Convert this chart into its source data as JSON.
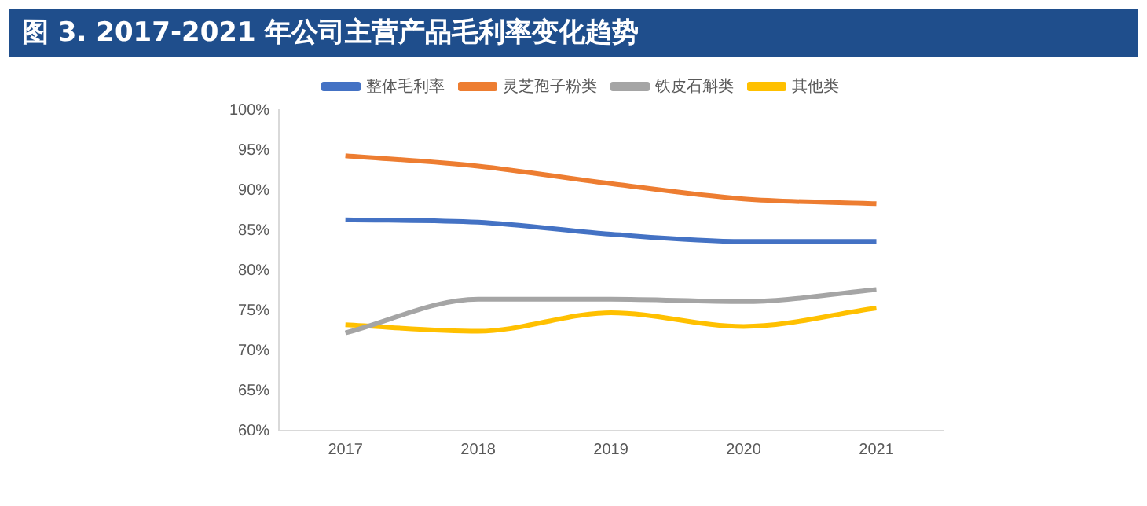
{
  "chart_data": {
    "type": "line",
    "title": "图 3. 2017-2021 年公司主营产品毛利率变化趋势",
    "categories": [
      "2017",
      "2018",
      "2019",
      "2020",
      "2021"
    ],
    "series": [
      {
        "name": "整体毛利率",
        "color": "#4472c4",
        "values": [
          86.3,
          86.0,
          84.5,
          83.6,
          83.6
        ]
      },
      {
        "name": "灵芝孢子粉类",
        "color": "#ed7d31",
        "values": [
          94.3,
          93.0,
          90.8,
          88.9,
          88.3
        ]
      },
      {
        "name": "铁皮石斛类",
        "color": "#a5a5a5",
        "values": [
          72.2,
          76.4,
          76.4,
          76.1,
          77.6
        ]
      },
      {
        "name": "其他类",
        "color": "#ffc000",
        "values": [
          73.2,
          72.4,
          74.7,
          73.0,
          75.3
        ]
      }
    ],
    "ylim": [
      60,
      100
    ],
    "yticks": [
      {
        "value": 60,
        "label": "60%"
      },
      {
        "value": 65,
        "label": "65%"
      },
      {
        "value": 70,
        "label": "70%"
      },
      {
        "value": 75,
        "label": "75%"
      },
      {
        "value": 80,
        "label": "80%"
      },
      {
        "value": 85,
        "label": "85%"
      },
      {
        "value": 90,
        "label": "90%"
      },
      {
        "value": 95,
        "label": "95%"
      },
      {
        "value": 100,
        "label": "100%"
      }
    ],
    "grid": false,
    "legend": "top",
    "marker": "none",
    "line_style": "solid"
  }
}
